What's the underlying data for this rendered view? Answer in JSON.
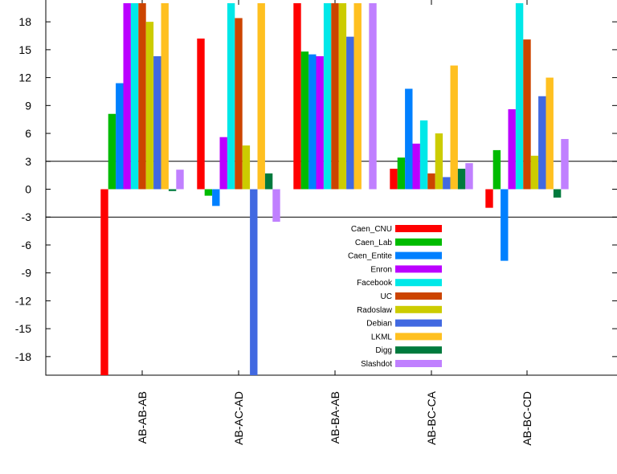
{
  "chart_data": {
    "type": "bar",
    "categories": [
      "AB-AB-AB",
      "AB-AC-AD",
      "AB-BA-AB",
      "AB-BC-CA",
      "AB-BC-CD"
    ],
    "ylim": [
      -20,
      20
    ],
    "yticks": [
      -18,
      -15,
      -12,
      -9,
      -6,
      -3,
      0,
      3,
      6,
      9,
      12,
      15,
      18
    ],
    "ytick_labels": [
      "-18",
      "-15",
      "-12",
      "-9",
      "-6",
      "-3",
      "0",
      "3",
      "6",
      "9",
      "12",
      "15",
      "18"
    ],
    "reference_lines": [
      3,
      -3
    ],
    "legend_position": "center",
    "series": [
      {
        "name": "Caen_CNU",
        "color": "#ff0000",
        "values": [
          -20,
          16.2,
          20,
          2.2,
          -2.0
        ]
      },
      {
        "name": "Caen_Lab",
        "color": "#00bb00",
        "values": [
          8.1,
          -0.7,
          14.8,
          3.4,
          4.2
        ]
      },
      {
        "name": "Caen_Entite",
        "color": "#0080ff",
        "values": [
          11.4,
          -1.8,
          14.5,
          10.8,
          -7.7
        ]
      },
      {
        "name": "Enron",
        "color": "#bb00ff",
        "values": [
          20,
          5.6,
          14.3,
          4.9,
          8.6
        ]
      },
      {
        "name": "Facebook",
        "color": "#00e8e8",
        "values": [
          20,
          20,
          20,
          7.4,
          20
        ]
      },
      {
        "name": "UC",
        "color": "#cc4400",
        "values": [
          20,
          18.4,
          20,
          1.7,
          16.1
        ]
      },
      {
        "name": "Radoslaw",
        "color": "#cccc00",
        "values": [
          18.0,
          4.7,
          20,
          6.0,
          3.6
        ]
      },
      {
        "name": "Debian",
        "color": "#4169e1",
        "values": [
          14.3,
          -20,
          16.4,
          1.3,
          10.0
        ]
      },
      {
        "name": "LKML",
        "color": "#ffc020",
        "values": [
          20,
          20,
          20,
          13.3,
          12.0
        ]
      },
      {
        "name": "Digg",
        "color": "#007a3d",
        "values": [
          -0.2,
          1.7,
          0,
          2.2,
          -0.9
        ]
      },
      {
        "name": "Slashdot",
        "color": "#c080ff",
        "values": [
          2.1,
          -3.5,
          20,
          2.8,
          5.4
        ]
      }
    ]
  }
}
